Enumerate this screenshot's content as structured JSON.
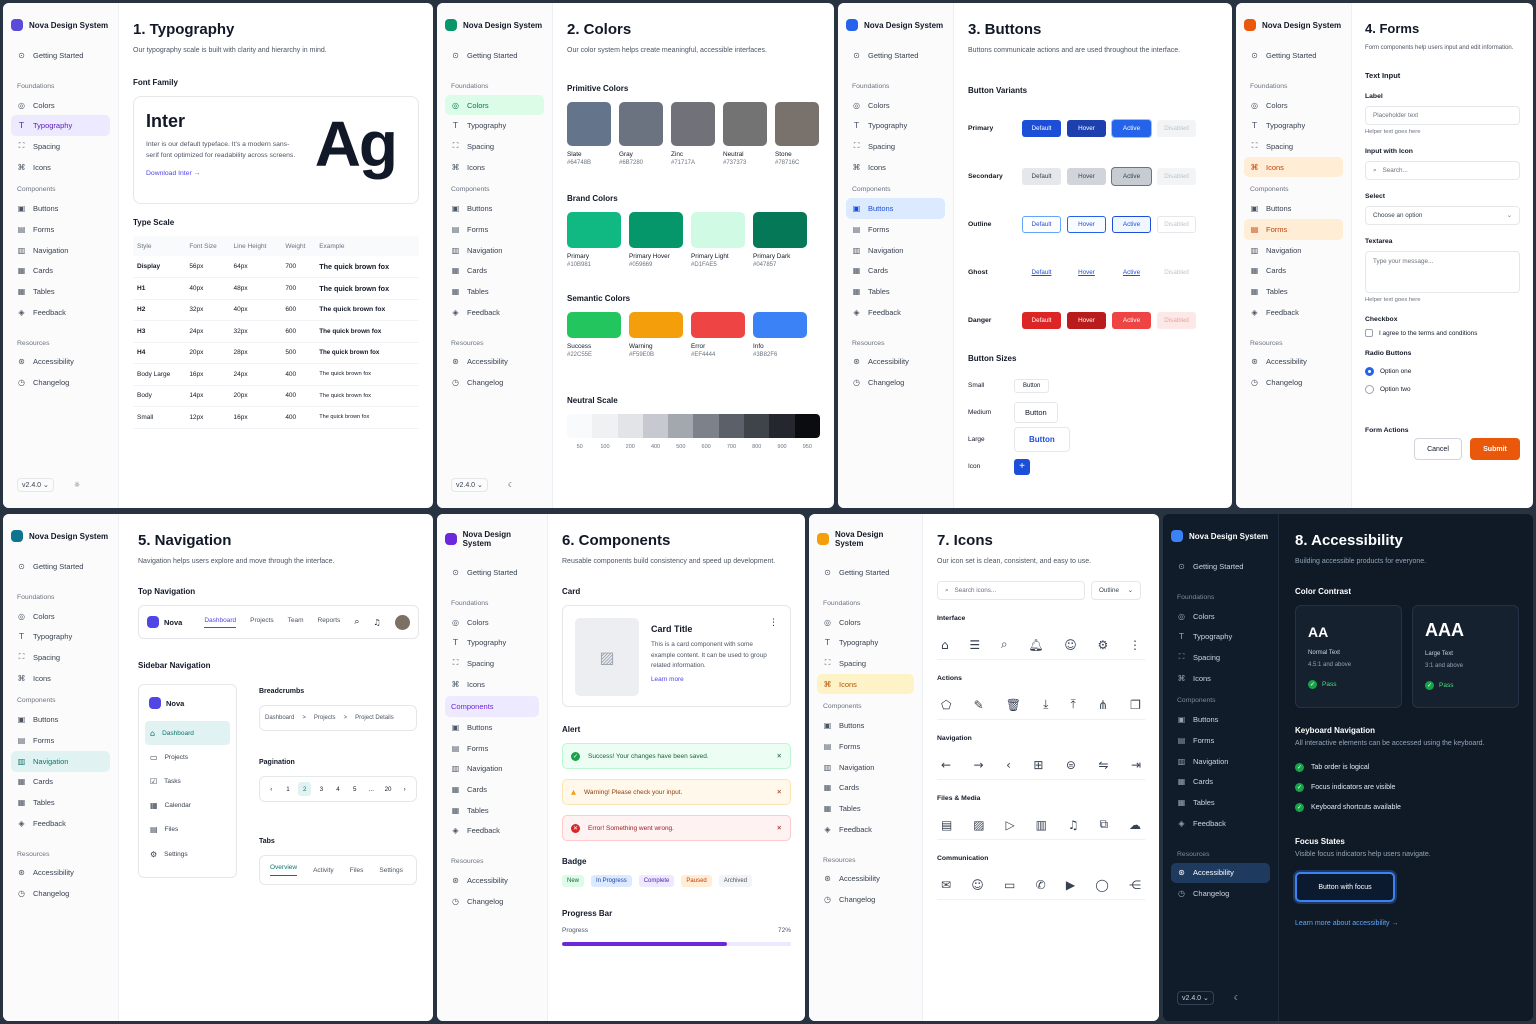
{
  "brand": "Nova Design System",
  "nav": {
    "getting_started": "Getting Started",
    "foundations": "Foundations",
    "foundation_items": [
      "Colors",
      "Typography",
      "Spacing",
      "Icons"
    ],
    "components": "Components",
    "component_items": [
      "Buttons",
      "Forms",
      "Navigation",
      "Cards",
      "Tables",
      "Feedback"
    ],
    "components_header_alt": "Components",
    "resources": "Resources",
    "resource_items": [
      "Accessibility",
      "Changelog"
    ],
    "version": "v2.4.0 ⌄"
  },
  "typography": {
    "title": "1. Typography",
    "desc": "Our typography scale is built with clarity and hierarchy in mind.",
    "font_family": "Font Family",
    "font_name": "Inter",
    "font_desc": "Inter is our default typeface. It's a modern sans-serif font optimized for readability across screens.",
    "download": "Download Inter →",
    "sample": "Ag",
    "type_scale": "Type Scale",
    "headers": [
      "Style",
      "Font Size",
      "Line Height",
      "Weight",
      "Example"
    ],
    "rows": [
      [
        "Display",
        "56px",
        "64px",
        "700",
        "The quick brown fox"
      ],
      [
        "H1",
        "40px",
        "48px",
        "700",
        "The quick brown fox"
      ],
      [
        "H2",
        "32px",
        "40px",
        "600",
        "The quick brown fox"
      ],
      [
        "H3",
        "24px",
        "32px",
        "600",
        "The quick brown fox"
      ],
      [
        "H4",
        "20px",
        "28px",
        "500",
        "The quick brown fox"
      ],
      [
        "Body Large",
        "16px",
        "24px",
        "400",
        "The quick brown fox"
      ],
      [
        "Body",
        "14px",
        "20px",
        "400",
        "The quick brown fox"
      ],
      [
        "Small",
        "12px",
        "16px",
        "400",
        "The quick brown fox"
      ]
    ]
  },
  "colors": {
    "title": "2. Colors",
    "desc": "Our color system helps create meaningful, accessible interfaces.",
    "primitive": "Primitive Colors",
    "primitive_items": [
      {
        "name": "Slate",
        "hex": "#64748B"
      },
      {
        "name": "Gray",
        "hex": "#6B7280"
      },
      {
        "name": "Zinc",
        "hex": "#71717A"
      },
      {
        "name": "Neutral",
        "hex": "#737373"
      },
      {
        "name": "Stone",
        "hex": "#78716C"
      }
    ],
    "brand": "Brand Colors",
    "brand_items": [
      {
        "name": "Primary",
        "hex": "#10B981"
      },
      {
        "name": "Primary Hover",
        "hex": "#059669"
      },
      {
        "name": "Primary Light",
        "hex": "#D1FAE5"
      },
      {
        "name": "Primary Dark",
        "hex": "#047857"
      }
    ],
    "semantic": "Semantic Colors",
    "semantic_items": [
      {
        "name": "Success",
        "hex": "#22C55E"
      },
      {
        "name": "Warning",
        "hex": "#F59E0B"
      },
      {
        "name": "Error",
        "hex": "#EF4444"
      },
      {
        "name": "Info",
        "hex": "#3B82F6"
      }
    ],
    "neutral": "Neutral Scale",
    "neutral_labels": [
      "50",
      "100",
      "200",
      "400",
      "500",
      "600",
      "700",
      "800",
      "900",
      "950"
    ],
    "neutral_colors": [
      "#f9fafb",
      "#f0f1f3",
      "#e2e4e8",
      "#c6c9cf",
      "#a3a7ae",
      "#7d8189",
      "#5c6068",
      "#3f434a",
      "#24272d",
      "#0b0c0f"
    ]
  },
  "buttons": {
    "title": "3. Buttons",
    "desc": "Buttons communicate actions and are used throughout the interface.",
    "variants": "Button Variants",
    "rows": [
      "Primary",
      "Secondary",
      "Outline",
      "Ghost",
      "Danger"
    ],
    "states": [
      "Default",
      "Hover",
      "Active",
      "Disabled"
    ],
    "sizes": "Button Sizes",
    "size_rows": [
      "Small",
      "Medium",
      "Large",
      "Icon"
    ],
    "button_label": "Button",
    "icon_label": "+"
  },
  "forms": {
    "title": "4. Forms",
    "desc": "Form components help users input and edit information.",
    "text_input": "Text Input",
    "label": "Label",
    "placeholder": "Placeholder text",
    "helper": "Helper text goes here",
    "input_icon": "Input with Icon",
    "search": "Search...",
    "select": "Select",
    "select_value": "Choose an option",
    "textarea": "Textarea",
    "textarea_ph": "Type your message...",
    "helper2": "Helper text goes here",
    "checkbox": "Checkbox",
    "checkbox_label": "I agree to the terms and conditions",
    "radio": "Radio Buttons",
    "radio1": "Option one",
    "radio2": "Option two",
    "actions": "Form Actions",
    "cancel": "Cancel",
    "submit": "Submit"
  },
  "navigation": {
    "title": "5. Navigation",
    "desc": "Navigation helps users explore and move through the interface.",
    "top": "Top Navigation",
    "app": "Nova",
    "top_items": [
      "Dashboard",
      "Projects",
      "Team",
      "Reports"
    ],
    "sidebar": "Sidebar Navigation",
    "side_items": [
      "Dashboard",
      "Projects",
      "Tasks",
      "Calendar",
      "Files",
      "Settings"
    ],
    "breadcrumbs": "Breadcrumbs",
    "crumbs": [
      "Dashboard",
      ">",
      "Projects",
      ">",
      "Project Details"
    ],
    "pagination": "Pagination",
    "pages": [
      "‹",
      "1",
      "2",
      "3",
      "4",
      "5",
      "...",
      "20",
      "›"
    ],
    "tabs": "Tabs",
    "tab_items": [
      "Overview",
      "Activity",
      "Files",
      "Settings"
    ]
  },
  "components": {
    "title": "6. Components",
    "desc": "Reusable components build consistency and speed up development.",
    "card": "Card",
    "card_title": "Card Title",
    "card_text": "This is a card component with some example content. It can be used to group related information.",
    "learn": "Learn more",
    "alert": "Alert",
    "alerts": [
      "Success! Your changes have been saved.",
      "Warning! Please check your input.",
      "Error! Something went wrong."
    ],
    "badge": "Badge",
    "badges": [
      "New",
      "In Progress",
      "Complete",
      "Paused",
      "Archived"
    ],
    "progress": "Progress Bar",
    "progress_label": "Progress",
    "progress_value": "72%",
    "progress_fraction": 0.72
  },
  "icons": {
    "title": "7. Icons",
    "desc": "Our icon set is clean, consistent, and easy to use.",
    "search": "Search icons...",
    "style": "Outline",
    "sections": [
      {
        "name": "Interface",
        "glyphs": [
          "⌂",
          "☰",
          "⌕",
          "🔔︎",
          "☺",
          "⚙",
          "⋮"
        ]
      },
      {
        "name": "Actions",
        "glyphs": [
          "⬠",
          "✎",
          "🗑︎",
          "⤓",
          "⤒",
          "⋔",
          "❐"
        ]
      },
      {
        "name": "Navigation",
        "glyphs": [
          "←",
          "→",
          "‹",
          "⊞",
          "⊜",
          "⇋",
          "⇥"
        ]
      },
      {
        "name": "Files & Media",
        "glyphs": [
          "▤",
          "▨",
          "▷",
          "▥",
          "♫",
          "⧉",
          "☁"
        ]
      },
      {
        "name": "Communication",
        "glyphs": [
          "✉",
          "☺",
          "▭",
          "✆",
          "▶",
          "◯",
          "⋲"
        ]
      }
    ]
  },
  "accessibility": {
    "title": "8. Accessibility",
    "desc": "Building accessible products for everyone.",
    "contrast": "Color Contrast",
    "aa": "AA",
    "aa_label": "Normal Text",
    "aa_ratio": "4.5:1 and above",
    "aaa": "AAA",
    "aaa_label": "Large Text",
    "aaa_ratio": "3:1 and above",
    "pass": "Pass",
    "keyboard": "Keyboard Navigation",
    "keyboard_desc": "All interactive elements can be accessed using the keyboard.",
    "kitems": [
      "Tab order is logical",
      "Focus indicators are visible",
      "Keyboard shortcuts available"
    ],
    "focus": "Focus States",
    "focus_desc": "Visible focus indicators help users navigate.",
    "focus_btn": "Button with focus",
    "learn": "Learn more about accessibility →"
  },
  "theme": {
    "primary": "#1d4ed8",
    "danger": "#dc2626",
    "orange": "#ea580c",
    "purple": "#6d28d9",
    "green": "#16a34a"
  }
}
